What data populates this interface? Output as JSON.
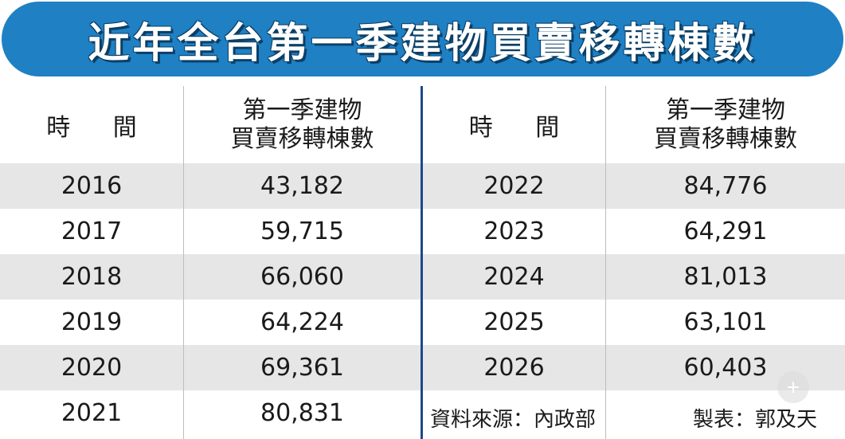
{
  "title": "近年全台第一季建物買賣移轉棟數",
  "headers": {
    "time": "時 間",
    "count_line1": "第一季建物",
    "count_line2": "買賣移轉棟數"
  },
  "chart_data": {
    "type": "table",
    "title": "近年全台第一季建物買賣移轉棟數",
    "columns": [
      "時 間",
      "第一季建物買賣移轉棟數"
    ],
    "rows": [
      {
        "year": "2016",
        "value": "43,182"
      },
      {
        "year": "2017",
        "value": "59,715"
      },
      {
        "year": "2018",
        "value": "66,060"
      },
      {
        "year": "2019",
        "value": "64,224"
      },
      {
        "year": "2020",
        "value": "69,361"
      },
      {
        "year": "2021",
        "value": "80,831"
      },
      {
        "year": "2022",
        "value": "84,776"
      },
      {
        "year": "2023",
        "value": "64,291"
      },
      {
        "year": "2024",
        "value": "81,013"
      },
      {
        "year": "2025",
        "value": "63,101"
      },
      {
        "year": "2026",
        "value": "60,403"
      }
    ]
  },
  "footer": {
    "source": "資料來源：內政部",
    "maker": "製表：郭及天"
  },
  "colors": {
    "banner": "#1f80c4",
    "divider": "#1a4a8a",
    "shade": "#e6e6e6"
  }
}
